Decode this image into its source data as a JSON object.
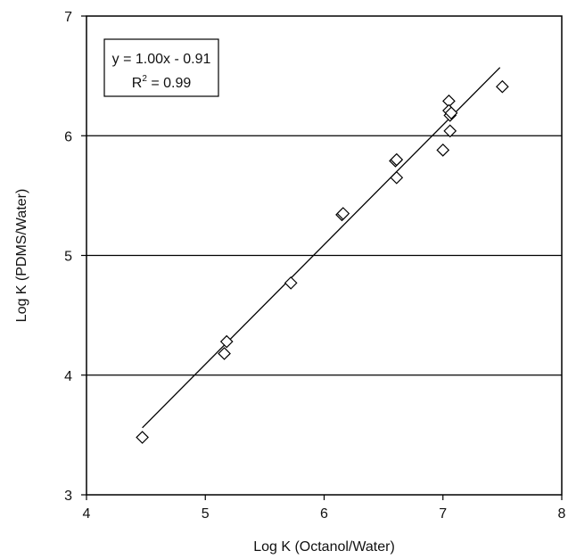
{
  "chart_data": {
    "type": "scatter",
    "xlabel": "Log K (Octanol/Water)",
    "ylabel": "Log K (PDMS/Water)",
    "xlim": [
      4,
      8
    ],
    "ylim": [
      3,
      7
    ],
    "xticks": [
      4,
      5,
      6,
      7,
      8
    ],
    "yticks": [
      3,
      4,
      5,
      6,
      7
    ],
    "gridlines": "horizontal",
    "marker": "open-diamond",
    "points": [
      {
        "x": 4.47,
        "y": 3.48
      },
      {
        "x": 5.16,
        "y": 4.18
      },
      {
        "x": 5.18,
        "y": 4.28
      },
      {
        "x": 5.72,
        "y": 4.77
      },
      {
        "x": 6.15,
        "y": 5.34
      },
      {
        "x": 6.16,
        "y": 5.35
      },
      {
        "x": 6.6,
        "y": 5.79
      },
      {
        "x": 6.61,
        "y": 5.8
      },
      {
        "x": 6.61,
        "y": 5.65
      },
      {
        "x": 7.0,
        "y": 5.88
      },
      {
        "x": 7.05,
        "y": 6.29
      },
      {
        "x": 7.05,
        "y": 6.21
      },
      {
        "x": 7.06,
        "y": 6.17
      },
      {
        "x": 7.07,
        "y": 6.19
      },
      {
        "x": 7.06,
        "y": 6.04
      },
      {
        "x": 7.5,
        "y": 6.41
      }
    ],
    "trendline": {
      "slope": 1.0,
      "intercept": -0.91,
      "x_start": 4.47,
      "x_end": 7.48
    },
    "annotation": {
      "equation": "y = 1.00x - 0.91",
      "r2_prefix": "R",
      "r2_sup": "2",
      "r2_suffix": " = 0.99"
    }
  }
}
